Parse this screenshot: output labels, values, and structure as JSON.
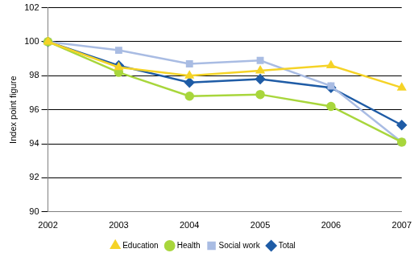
{
  "chart_data": {
    "type": "line",
    "y_label": "Index point figure",
    "categories": [
      "2002",
      "2003",
      "2004",
      "2005",
      "2006",
      "2007"
    ],
    "series": [
      {
        "name": "Education",
        "color": "#f5d327",
        "marker": "triangle",
        "values": [
          100,
          98.5,
          98.0,
          98.3,
          98.6,
          97.3
        ]
      },
      {
        "name": "Health",
        "color": "#a8d63c",
        "marker": "circle",
        "values": [
          100,
          98.2,
          96.8,
          96.9,
          96.2,
          94.1
        ]
      },
      {
        "name": "Social work",
        "color": "#a9bce3",
        "marker": "square",
        "values": [
          100,
          99.5,
          98.7,
          98.9,
          97.4,
          94.1
        ]
      },
      {
        "name": "Total",
        "color": "#1f5ca6",
        "marker": "diamond",
        "values": [
          100,
          98.6,
          97.6,
          97.8,
          97.3,
          95.1
        ]
      }
    ],
    "ylim": [
      90,
      102
    ],
    "yticks": [
      90,
      92,
      94,
      96,
      98,
      100,
      102
    ],
    "grid": true,
    "legend": "bottom"
  }
}
